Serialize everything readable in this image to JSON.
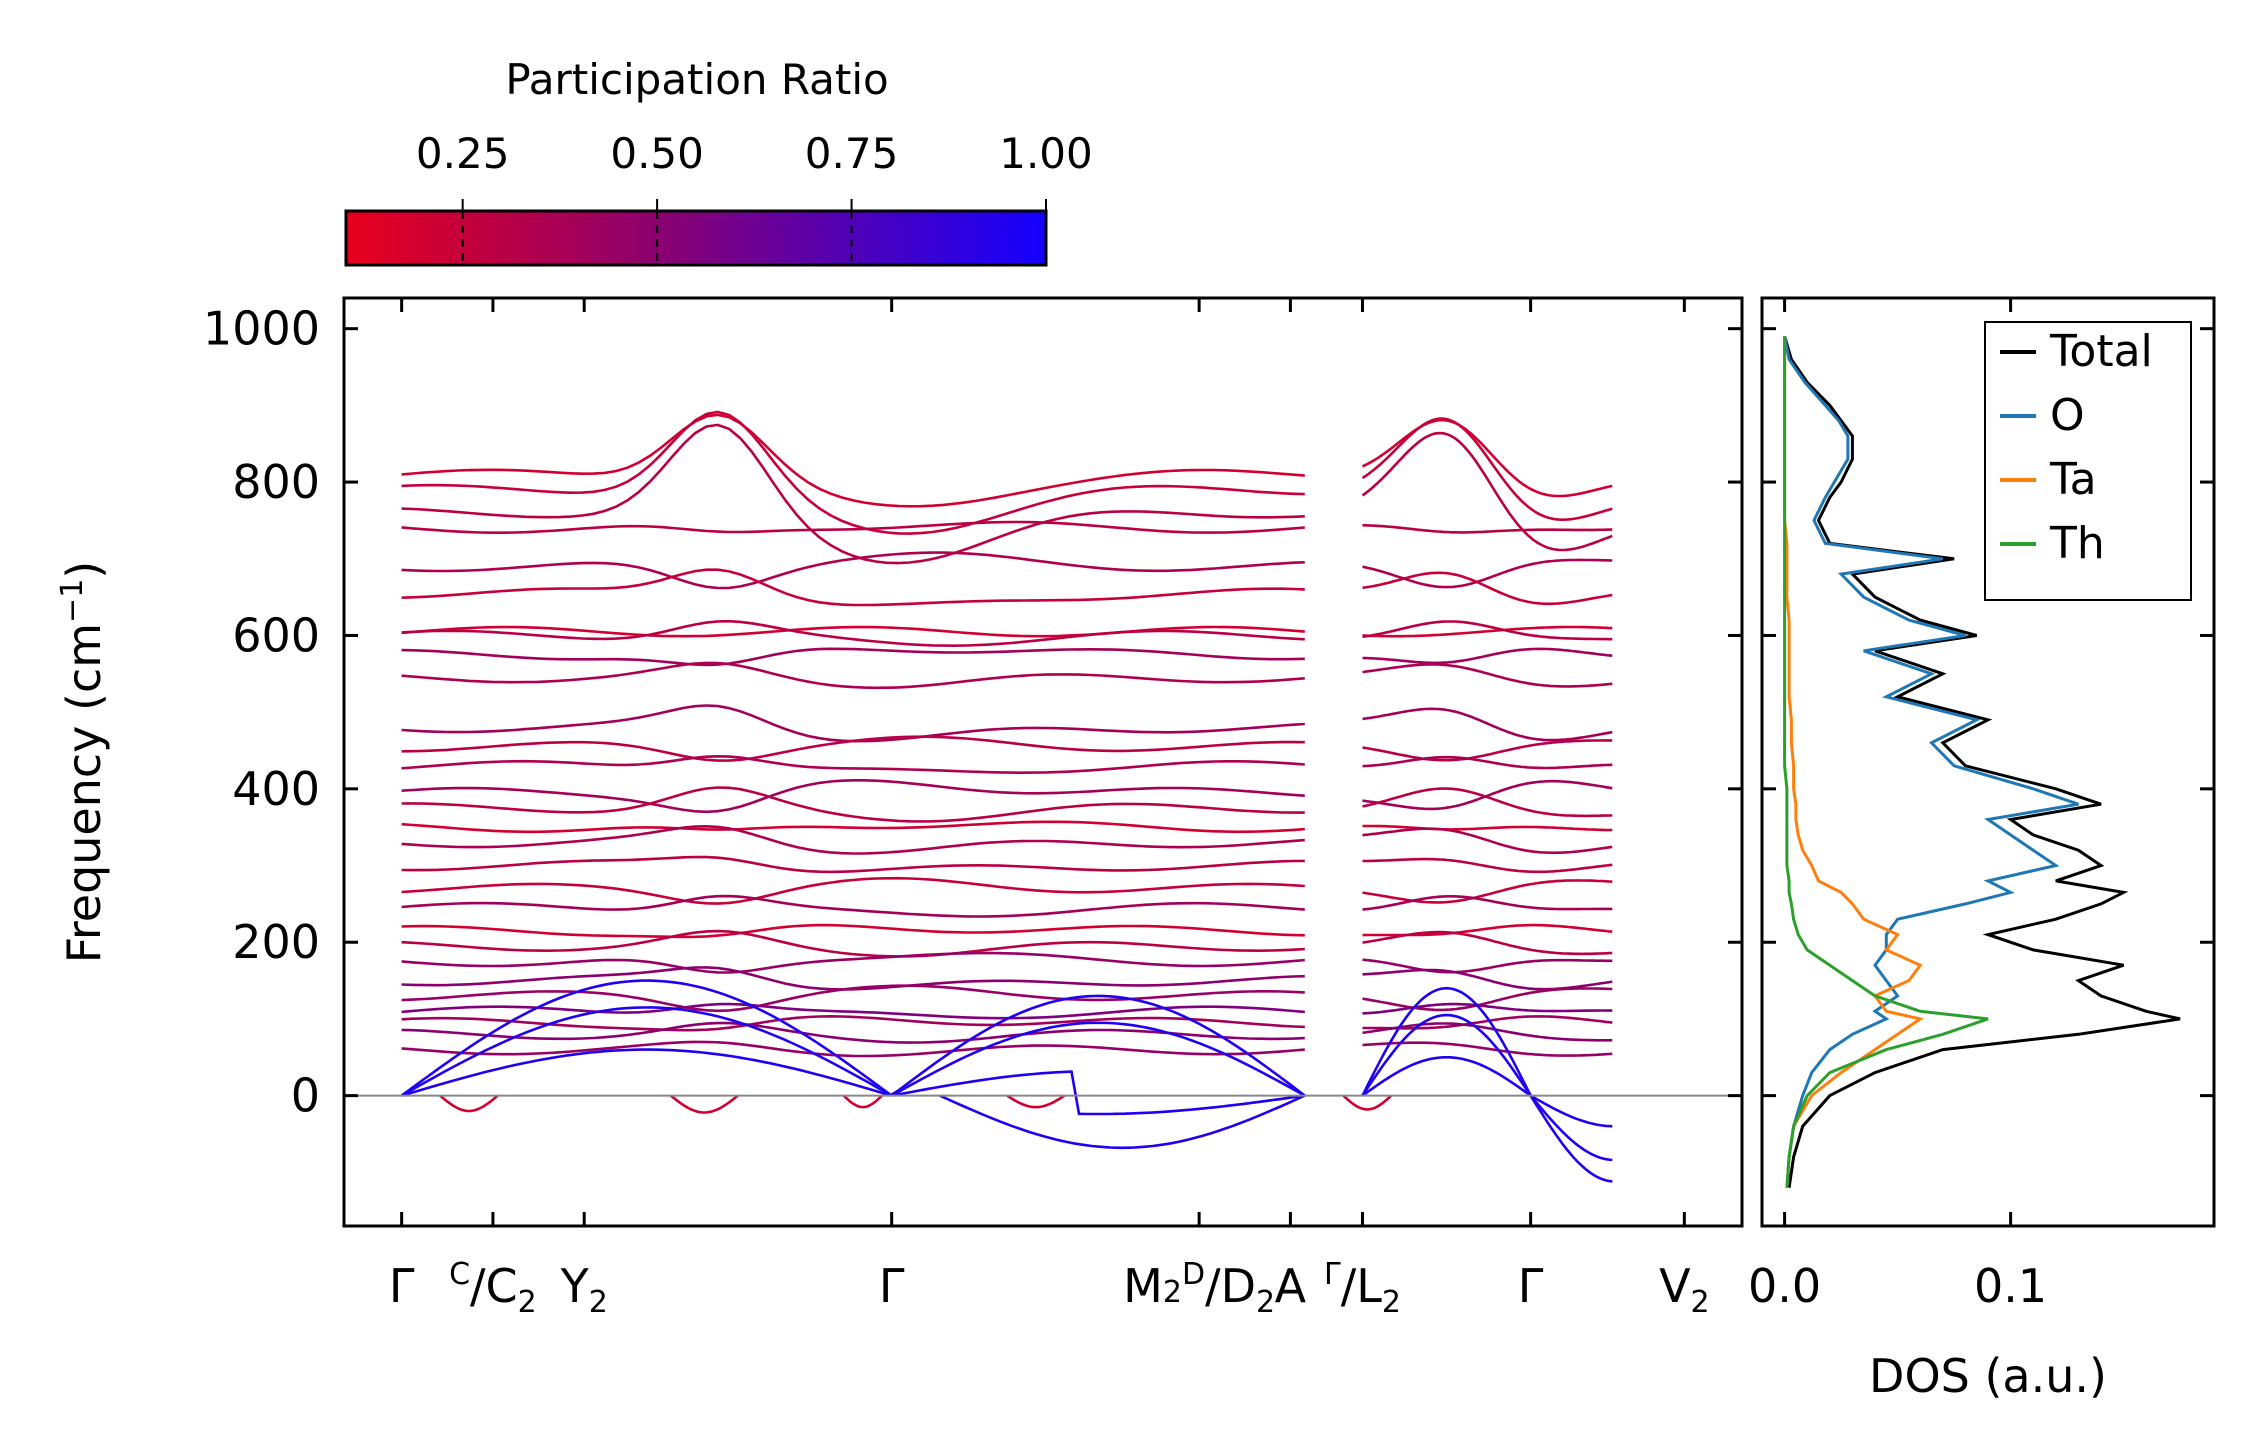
{
  "chart_data": [
    {
      "type": "line",
      "subtype": "phonon-band-structure",
      "ylabel": "Frequency (cm",
      "ylabel_unit_sup": "−1",
      "ylabel_close": ")",
      "ylim": [
        -170,
        1040
      ],
      "yticks": [
        0,
        200,
        400,
        600,
        800,
        1000
      ],
      "ytick_labels": [
        "0",
        "200",
        "400",
        "600",
        "800",
        "1000"
      ],
      "reference_line": 0,
      "panels": [
        {
          "x_range": [
            0,
            9.4
          ]
        },
        {
          "x_range": [
            10,
            12.6
          ]
        }
      ],
      "kpoint_ticks": [
        0,
        0.95,
        1.9,
        5.1,
        8.3,
        9.25,
        10,
        11.75,
        13.35
      ],
      "kpoint_labels": [
        {
          "pos": 0,
          "main": "Γ"
        },
        {
          "pos": 0.95,
          "sup": "C",
          "slash": "/",
          "main": "C",
          "sub": "2"
        },
        {
          "pos": 1.9,
          "main": "Y",
          "sub": "2"
        },
        {
          "pos": 5.1,
          "main": "Γ"
        },
        {
          "pos": 8.3,
          "main": "M",
          "sub": "2",
          "sup": "D",
          "slash": "/",
          "main2": "D",
          "sub2": "2"
        },
        {
          "pos": 9.25,
          "main": "A"
        },
        {
          "pos": 10,
          "sup": "Γ",
          "slash": "/",
          "main": "L",
          "sub": "2"
        },
        {
          "pos": 11.75,
          "main": "Γ"
        },
        {
          "pos": 13.35,
          "main": "V",
          "sub": "2"
        }
      ],
      "colorbar": {
        "title": "Participation Ratio",
        "range": [
          0.1,
          1.0
        ],
        "ticks": [
          0.25,
          0.5,
          0.75,
          1.0
        ],
        "tick_labels": [
          "0.25",
          "0.50",
          "0.75",
          "1.00"
        ],
        "color_low": "#e8001c",
        "color_high": "#1400ff"
      },
      "acoustic_branches": [
        {
          "start": 0,
          "gamma": 0,
          "end": 20,
          "pr": 0.95
        },
        {
          "start": 0,
          "gamma": 0,
          "end": 45,
          "pr": 0.95
        },
        {
          "start": 0,
          "gamma": 0,
          "end": 60,
          "pr": 0.92
        }
      ],
      "optical_band_samples": [
        {
          "freq": 810,
          "pr": 0.2,
          "bump": 90
        },
        {
          "freq": 790,
          "pr": 0.25,
          "bump": 110
        },
        {
          "freq": 760,
          "pr": 0.3,
          "bump": 120
        },
        {
          "freq": 740,
          "pr": 0.3,
          "bump": -10
        },
        {
          "freq": 690,
          "pr": 0.35,
          "bump": -30
        },
        {
          "freq": 655,
          "pr": 0.25,
          "bump": 40
        },
        {
          "freq": 605,
          "pr": 0.2,
          "bump": 0
        },
        {
          "freq": 600,
          "pr": 0.3,
          "bump": 20
        },
        {
          "freq": 575,
          "pr": 0.4,
          "bump": -20
        },
        {
          "freq": 545,
          "pr": 0.35,
          "bump": 15
        },
        {
          "freq": 480,
          "pr": 0.4,
          "bump": 30
        },
        {
          "freq": 455,
          "pr": 0.3,
          "bump": -15
        },
        {
          "freq": 430,
          "pr": 0.35,
          "bump": 20
        },
        {
          "freq": 395,
          "pr": 0.4,
          "bump": -25
        },
        {
          "freq": 375,
          "pr": 0.3,
          "bump": 25
        },
        {
          "freq": 350,
          "pr": 0.2,
          "bump": -10
        },
        {
          "freq": 330,
          "pr": 0.35,
          "bump": 20
        },
        {
          "freq": 300,
          "pr": 0.3,
          "bump": 15
        },
        {
          "freq": 270,
          "pr": 0.25,
          "bump": -15
        },
        {
          "freq": 245,
          "pr": 0.4,
          "bump": 20
        },
        {
          "freq": 215,
          "pr": 0.2,
          "bump": -10
        },
        {
          "freq": 195,
          "pr": 0.3,
          "bump": 15
        },
        {
          "freq": 175,
          "pr": 0.45,
          "bump": -20
        },
        {
          "freq": 150,
          "pr": 0.5,
          "bump": 20
        },
        {
          "freq": 130,
          "pr": 0.45,
          "bump": -15
        },
        {
          "freq": 110,
          "pr": 0.55,
          "bump": 15
        },
        {
          "freq": 95,
          "pr": 0.4,
          "bump": -10
        },
        {
          "freq": 80,
          "pr": 0.5,
          "bump": 10
        },
        {
          "freq": 60,
          "pr": 0.45,
          "bump": 5
        }
      ]
    },
    {
      "type": "line",
      "subtype": "density-of-states",
      "xlabel": "DOS (a.u.)",
      "xlim": [
        -0.01,
        0.19
      ],
      "xticks": [
        0.0,
        0.1
      ],
      "xtick_labels": [
        "0.0",
        "0.1"
      ],
      "legend": {
        "position": "top-right"
      },
      "series": [
        {
          "name": "Total",
          "color": "#000000",
          "freq": [
            -120,
            -80,
            -40,
            0,
            30,
            60,
            80,
            100,
            110,
            130,
            150,
            170,
            190,
            210,
            230,
            250,
            265,
            280,
            300,
            320,
            340,
            360,
            380,
            400,
            430,
            460,
            490,
            520,
            550,
            580,
            600,
            620,
            650,
            680,
            700,
            720,
            750,
            780,
            800,
            830,
            860,
            880,
            900,
            930,
            960,
            990
          ],
          "dos": [
            0.002,
            0.004,
            0.008,
            0.02,
            0.04,
            0.07,
            0.13,
            0.175,
            0.16,
            0.14,
            0.13,
            0.15,
            0.11,
            0.09,
            0.12,
            0.14,
            0.15,
            0.12,
            0.14,
            0.13,
            0.11,
            0.1,
            0.14,
            0.12,
            0.08,
            0.07,
            0.09,
            0.05,
            0.07,
            0.04,
            0.085,
            0.06,
            0.04,
            0.03,
            0.075,
            0.02,
            0.015,
            0.02,
            0.025,
            0.03,
            0.03,
            0.025,
            0.02,
            0.01,
            0.003,
            0.0
          ]
        },
        {
          "name": "O",
          "color": "#1f77b4",
          "freq": [
            -120,
            -80,
            -40,
            0,
            30,
            60,
            80,
            100,
            110,
            130,
            150,
            170,
            190,
            210,
            230,
            250,
            265,
            280,
            300,
            320,
            340,
            360,
            380,
            400,
            430,
            460,
            490,
            520,
            550,
            580,
            600,
            620,
            650,
            680,
            700,
            720,
            750,
            780,
            800,
            830,
            860,
            880,
            900,
            930,
            960,
            990
          ],
          "dos": [
            0.001,
            0.002,
            0.004,
            0.008,
            0.012,
            0.02,
            0.03,
            0.045,
            0.04,
            0.05,
            0.045,
            0.04,
            0.045,
            0.045,
            0.05,
            0.08,
            0.1,
            0.09,
            0.12,
            0.11,
            0.1,
            0.09,
            0.13,
            0.11,
            0.075,
            0.065,
            0.085,
            0.045,
            0.065,
            0.035,
            0.08,
            0.055,
            0.035,
            0.025,
            0.07,
            0.018,
            0.013,
            0.018,
            0.022,
            0.028,
            0.028,
            0.024,
            0.018,
            0.009,
            0.002,
            0.0
          ]
        },
        {
          "name": "Ta",
          "color": "#ff7f0e",
          "freq": [
            -120,
            -80,
            -40,
            0,
            30,
            60,
            80,
            100,
            110,
            130,
            150,
            170,
            190,
            210,
            230,
            250,
            265,
            280,
            300,
            320,
            340,
            360,
            380,
            400,
            430,
            460,
            490,
            520,
            550,
            580,
            600,
            620,
            650,
            680,
            700,
            720,
            750,
            780,
            800,
            830,
            860,
            880,
            900,
            930,
            960,
            990
          ],
          "dos": [
            0.001,
            0.002,
            0.004,
            0.012,
            0.025,
            0.04,
            0.05,
            0.06,
            0.045,
            0.04,
            0.055,
            0.06,
            0.045,
            0.05,
            0.035,
            0.03,
            0.025,
            0.015,
            0.012,
            0.008,
            0.006,
            0.005,
            0.005,
            0.004,
            0.004,
            0.003,
            0.003,
            0.002,
            0.002,
            0.002,
            0.002,
            0.002,
            0.001,
            0.001,
            0.001,
            0.001,
            0.0,
            0.0,
            0.0,
            0.0,
            0.0,
            0.0,
            0.0,
            0.0,
            0.0,
            0.0
          ]
        },
        {
          "name": "Th",
          "color": "#2ca02c",
          "freq": [
            -120,
            -80,
            -40,
            0,
            30,
            60,
            80,
            100,
            110,
            130,
            150,
            170,
            190,
            210,
            230,
            250,
            265,
            280,
            300,
            320,
            340,
            360,
            380,
            400,
            430,
            460,
            490,
            520,
            550,
            580,
            600,
            620,
            650,
            680,
            700,
            720,
            750,
            780,
            800,
            830,
            860,
            880,
            900,
            930,
            960,
            990
          ],
          "dos": [
            0.001,
            0.002,
            0.004,
            0.01,
            0.02,
            0.045,
            0.07,
            0.09,
            0.06,
            0.04,
            0.03,
            0.02,
            0.01,
            0.006,
            0.004,
            0.003,
            0.002,
            0.002,
            0.001,
            0.001,
            0.001,
            0.001,
            0.001,
            0.001,
            0.0,
            0.0,
            0.0,
            0.0,
            0.0,
            0.0,
            0.0,
            0.0,
            0.0,
            0.0,
            0.0,
            0.0,
            0.0,
            0.0,
            0.0,
            0.0,
            0.0,
            0.0,
            0.0,
            0.0,
            0.0,
            0.0
          ]
        }
      ]
    }
  ]
}
